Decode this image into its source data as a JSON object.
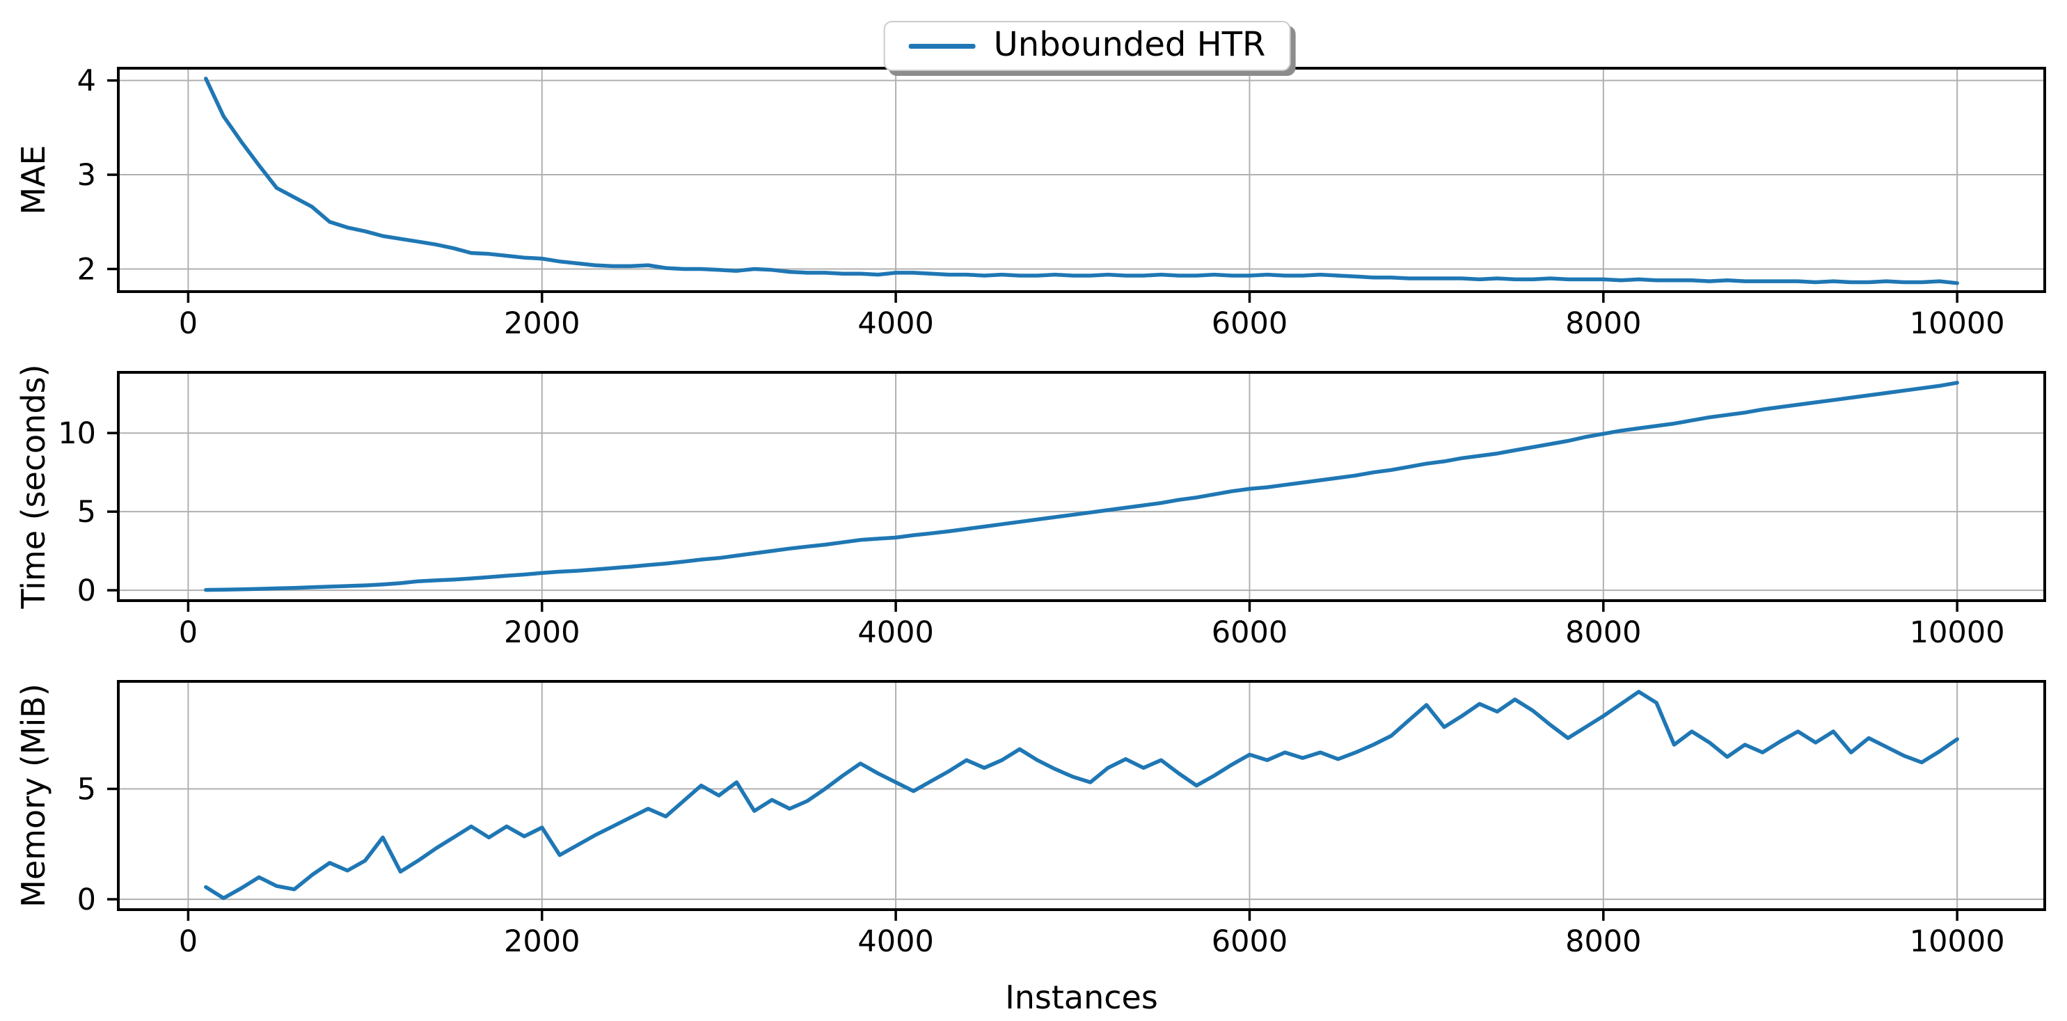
{
  "figure": {
    "background": "#ffffff"
  },
  "legend": {
    "label": "Unbounded HTR"
  },
  "colors": {
    "line": "#1f77b4",
    "grid": "#b0b0b0",
    "spine": "#000000",
    "text": "#000000",
    "legend_border": "#cccccc",
    "legend_shadow": "#8c8c8c"
  },
  "shared_x": {
    "start": 100,
    "step": 100,
    "count": 100
  },
  "x_axis": {
    "label": "Instances",
    "xticks": [
      0,
      2000,
      4000,
      6000,
      8000,
      10000
    ],
    "xlim": [
      -395,
      10495
    ]
  },
  "chart_data": [
    {
      "type": "line",
      "title": "",
      "xlabel": "",
      "ylabel": "MAE",
      "yticks": [
        2,
        3,
        4
      ],
      "ylim": [
        1.76,
        4.13
      ],
      "grid": true,
      "legend_entry": "Unbounded HTR",
      "y": [
        4.02,
        3.62,
        3.35,
        3.1,
        2.86,
        2.76,
        2.66,
        2.5,
        2.44,
        2.4,
        2.35,
        2.32,
        2.29,
        2.26,
        2.22,
        2.17,
        2.16,
        2.14,
        2.12,
        2.11,
        2.08,
        2.06,
        2.04,
        2.03,
        2.03,
        2.04,
        2.01,
        2.0,
        2.0,
        1.99,
        1.98,
        2.0,
        1.99,
        1.97,
        1.96,
        1.96,
        1.95,
        1.95,
        1.94,
        1.96,
        1.96,
        1.95,
        1.94,
        1.94,
        1.93,
        1.94,
        1.93,
        1.93,
        1.94,
        1.93,
        1.93,
        1.94,
        1.93,
        1.93,
        1.94,
        1.93,
        1.93,
        1.94,
        1.93,
        1.93,
        1.94,
        1.93,
        1.93,
        1.94,
        1.93,
        1.92,
        1.91,
        1.91,
        1.9,
        1.9,
        1.9,
        1.9,
        1.89,
        1.9,
        1.89,
        1.89,
        1.9,
        1.89,
        1.89,
        1.89,
        1.88,
        1.89,
        1.88,
        1.88,
        1.88,
        1.87,
        1.88,
        1.87,
        1.87,
        1.87,
        1.87,
        1.86,
        1.87,
        1.86,
        1.86,
        1.87,
        1.86,
        1.86,
        1.87,
        1.85
      ]
    },
    {
      "type": "line",
      "title": "",
      "xlabel": "",
      "ylabel": "Time (seconds)",
      "yticks": [
        0,
        5,
        10
      ],
      "ylim": [
        -0.66,
        13.86
      ],
      "grid": true,
      "legend_entry": "Unbounded HTR",
      "y": [
        0.02,
        0.04,
        0.06,
        0.09,
        0.12,
        0.15,
        0.19,
        0.23,
        0.27,
        0.31,
        0.37,
        0.45,
        0.57,
        0.63,
        0.68,
        0.75,
        0.83,
        0.92,
        1.0,
        1.1,
        1.18,
        1.24,
        1.32,
        1.41,
        1.5,
        1.6,
        1.7,
        1.82,
        1.95,
        2.05,
        2.2,
        2.35,
        2.5,
        2.65,
        2.78,
        2.9,
        3.05,
        3.2,
        3.28,
        3.35,
        3.5,
        3.62,
        3.75,
        3.9,
        4.05,
        4.2,
        4.35,
        4.5,
        4.65,
        4.8,
        4.95,
        5.1,
        5.25,
        5.4,
        5.55,
        5.75,
        5.9,
        6.1,
        6.3,
        6.45,
        6.55,
        6.7,
        6.85,
        7.0,
        7.15,
        7.3,
        7.5,
        7.65,
        7.85,
        8.05,
        8.2,
        8.4,
        8.55,
        8.7,
        8.9,
        9.1,
        9.3,
        9.5,
        9.75,
        9.95,
        10.15,
        10.3,
        10.45,
        10.6,
        10.8,
        11.0,
        11.15,
        11.3,
        11.5,
        11.65,
        11.8,
        11.95,
        12.1,
        12.25,
        12.4,
        12.55,
        12.7,
        12.85,
        13.0,
        13.2
      ]
    },
    {
      "type": "line",
      "title": "",
      "xlabel": "Instances",
      "ylabel": "Memory (MiB)",
      "yticks": [
        0,
        5
      ],
      "ylim": [
        -0.47,
        9.87
      ],
      "grid": true,
      "legend_entry": "Unbounded HTR",
      "y": [
        0.55,
        0.05,
        0.5,
        1.0,
        0.6,
        0.45,
        1.1,
        1.65,
        1.3,
        1.75,
        2.8,
        1.25,
        1.75,
        2.3,
        2.8,
        3.3,
        2.8,
        3.3,
        2.85,
        3.25,
        2.0,
        2.45,
        2.9,
        3.3,
        3.7,
        4.1,
        3.75,
        4.45,
        5.15,
        4.7,
        5.3,
        4.0,
        4.5,
        4.1,
        4.45,
        5.0,
        5.6,
        6.15,
        5.7,
        5.3,
        4.9,
        5.35,
        5.8,
        6.3,
        5.95,
        6.3,
        6.8,
        6.3,
        5.9,
        5.55,
        5.3,
        5.95,
        6.35,
        5.95,
        6.3,
        5.7,
        5.15,
        5.6,
        6.1,
        6.55,
        6.3,
        6.65,
        6.4,
        6.65,
        6.35,
        6.65,
        7.0,
        7.4,
        8.1,
        8.8,
        7.8,
        8.3,
        8.85,
        8.5,
        9.05,
        8.55,
        7.9,
        7.3,
        7.8,
        8.3,
        8.85,
        9.4,
        8.9,
        7.0,
        7.6,
        7.1,
        6.45,
        7.0,
        6.65,
        7.15,
        7.6,
        7.1,
        7.6,
        6.65,
        7.3,
        6.9,
        6.5,
        6.2,
        6.7,
        7.25
      ]
    }
  ]
}
